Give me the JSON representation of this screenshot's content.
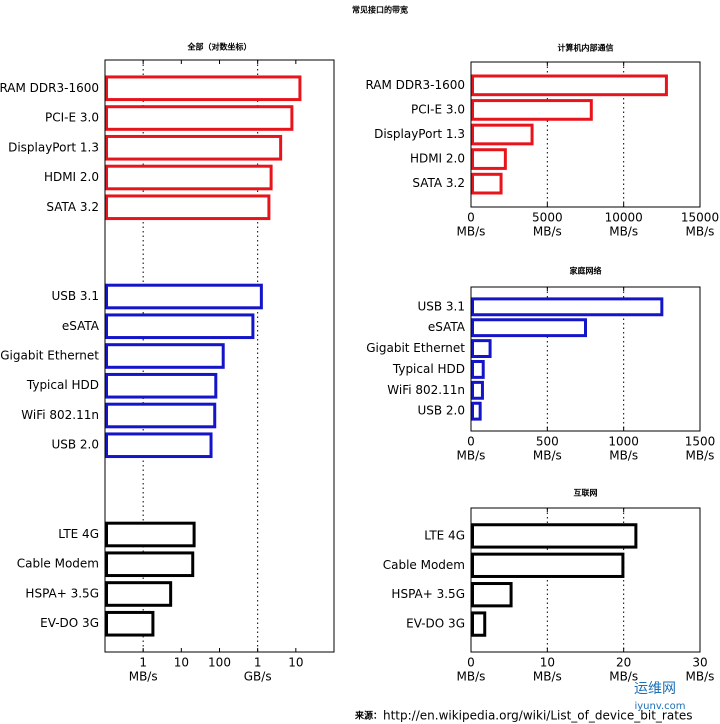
{
  "title": "常见接口的带宽",
  "source_label": "来源：",
  "source": "http://en.wikipedia.org/wiki/List_of_device_bit_rates",
  "watermark": [
    "运维网",
    "iyunv.com"
  ],
  "chart_data": [
    {
      "type": "bar",
      "title": "全部（对数坐标）",
      "xscale": "log",
      "xlim": [
        0.1,
        100000
      ],
      "xticks": [
        1,
        10,
        100,
        {
          "value": 1000,
          "label": "1"
        },
        {
          "value": 10000,
          "label": "10"
        }
      ],
      "xtick_units": [
        {
          "value": 1,
          "label": "MB/s"
        },
        {
          "value": 1000,
          "label": "GB/s"
        }
      ],
      "grid": true,
      "series": [
        {
          "color": "#e8141c",
          "categories": [
            "RAM DDR3-1600",
            "PCI-E 3.0",
            "DisplayPort 1.3",
            "HDMI 2.0",
            "SATA 3.2"
          ],
          "values": [
            12800,
            7880,
            4000,
            2250,
            1969
          ]
        },
        {
          "color": "#1414c8",
          "categories": [
            "USB 3.1",
            "eSATA",
            "Gigabit Ethernet",
            "Typical HDD",
            "WiFi 802.11n",
            "USB 2.0"
          ],
          "values": [
            1250,
            750,
            125,
            80,
            75,
            60
          ]
        },
        {
          "color": "#000000",
          "categories": [
            "LTE 4G",
            "Cable Modem",
            "HSPA+ 3.5G",
            "EV-DO 3G"
          ],
          "values": [
            21.6,
            19.9,
            5.25,
            1.8
          ]
        }
      ]
    },
    {
      "type": "bar",
      "title": "计算机内部通信",
      "xlim": [
        0,
        15000
      ],
      "xticks": [
        0,
        5000,
        10000,
        15000
      ],
      "xtick_unit": "MB/s",
      "grid": true,
      "color": "#e8141c",
      "categories": [
        "RAM DDR3-1600",
        "PCI-E 3.0",
        "DisplayPort 1.3",
        "HDMI 2.0",
        "SATA 3.2"
      ],
      "values": [
        12800,
        7880,
        4000,
        2250,
        1969
      ]
    },
    {
      "type": "bar",
      "title": "家庭网络",
      "xlim": [
        0,
        1500
      ],
      "xticks": [
        0,
        500,
        1000,
        1500
      ],
      "xtick_unit": "MB/s",
      "grid": true,
      "color": "#1414c8",
      "categories": [
        "USB 3.1",
        "eSATA",
        "Gigabit Ethernet",
        "Typical HDD",
        "WiFi 802.11n",
        "USB 2.0"
      ],
      "values": [
        1250,
        750,
        125,
        80,
        75,
        60
      ]
    },
    {
      "type": "bar",
      "title": "互联网",
      "xlim": [
        0,
        30
      ],
      "xticks": [
        0,
        10,
        20,
        30
      ],
      "xtick_unit": "MB/s",
      "grid": true,
      "color": "#000000",
      "categories": [
        "LTE 4G",
        "Cable Modem",
        "HSPA+ 3.5G",
        "EV-DO 3G"
      ],
      "values": [
        21.6,
        19.9,
        5.25,
        1.8
      ]
    }
  ]
}
